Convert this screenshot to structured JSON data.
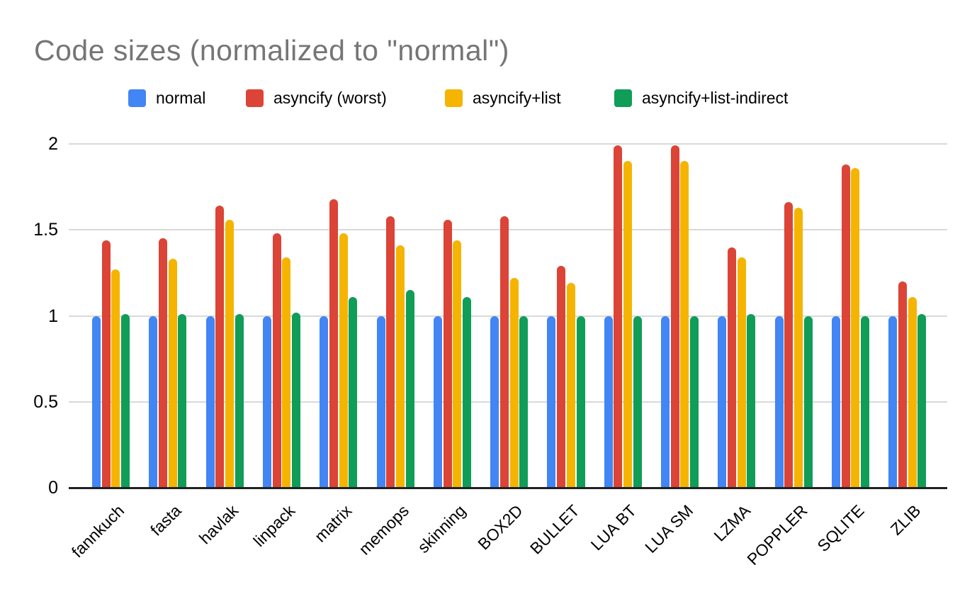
{
  "chart_data": {
    "type": "bar",
    "title": "Code sizes (normalized to \"normal\")",
    "xlabel": "",
    "ylabel": "",
    "ylim": [
      0,
      2
    ],
    "y_ticks": [
      0,
      0.5,
      1,
      1.5,
      2
    ],
    "grid": true,
    "legend_position": "top",
    "categories": [
      "fannkuch",
      "fasta",
      "havlak",
      "linpack",
      "matrix",
      "memops",
      "skinning",
      "BOX2D",
      "BULLET",
      "LUA BT",
      "LUA SM",
      "LZMA",
      "POPPLER",
      "SQLITE",
      "ZLIB"
    ],
    "series": [
      {
        "name": "normal",
        "color": "#4285F4",
        "values": [
          1.0,
          1.0,
          1.0,
          1.0,
          1.0,
          1.0,
          1.0,
          1.0,
          1.0,
          1.0,
          1.0,
          1.0,
          1.0,
          1.0,
          1.0
        ]
      },
      {
        "name": "asyncify (worst)",
        "color": "#DB4437",
        "values": [
          1.44,
          1.45,
          1.64,
          1.48,
          1.68,
          1.58,
          1.56,
          1.58,
          1.29,
          1.99,
          1.99,
          1.4,
          1.66,
          1.88,
          1.2
        ]
      },
      {
        "name": "asyncify+list",
        "color": "#F5B400",
        "values": [
          1.27,
          1.33,
          1.56,
          1.34,
          1.48,
          1.41,
          1.44,
          1.22,
          1.19,
          1.9,
          1.9,
          1.34,
          1.63,
          1.86,
          1.11
        ]
      },
      {
        "name": "asyncify+list-indirect",
        "color": "#0F9D58",
        "values": [
          1.01,
          1.01,
          1.01,
          1.02,
          1.11,
          1.15,
          1.11,
          1.0,
          1.0,
          1.0,
          1.0,
          1.01,
          1.0,
          1.0,
          1.01
        ]
      }
    ],
    "style": {
      "title_color": "#757575",
      "gridline_color": "#d9d9d9",
      "axis_color": "#212121",
      "label_color": "#000000"
    }
  }
}
